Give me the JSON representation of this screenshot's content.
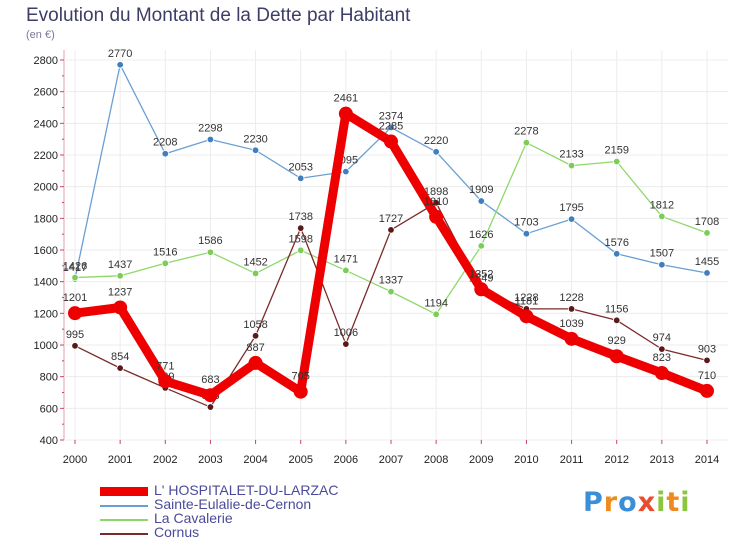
{
  "header": {
    "title": "Evolution du Montant de la Dette par Habitant",
    "subtitle": "(en €)"
  },
  "logo": {
    "letters": [
      {
        "ch": "P",
        "color": "#3a8fd6"
      },
      {
        "ch": "r",
        "color": "#f08a1c"
      },
      {
        "ch": "o",
        "color": "#3a8fd6"
      },
      {
        "ch": "x",
        "color": "#e84b2e"
      },
      {
        "ch": "i",
        "color": "#8cc63f"
      },
      {
        "ch": "t",
        "color": "#f08a1c"
      },
      {
        "ch": "i",
        "color": "#8cc63f"
      }
    ]
  },
  "chart_data": {
    "type": "line",
    "title": "Evolution du Montant de la Dette par Habitant",
    "subtitle": "(en €)",
    "x": [
      "2000",
      "2001",
      "2002",
      "2003",
      "2004",
      "2005",
      "2006",
      "2007",
      "2008",
      "2009",
      "2010",
      "2011",
      "2012",
      "2013",
      "2014"
    ],
    "ylim": [
      400,
      2800
    ],
    "yticks": [
      400,
      600,
      800,
      1000,
      1200,
      1400,
      1600,
      1800,
      2000,
      2200,
      2400,
      2600,
      2800
    ],
    "grid": true,
    "legend_position": "bottom-left",
    "series": [
      {
        "name": "Sainte-Eulalie-de-Cernon",
        "color": "#6a9fd4",
        "point_color": "#3f7fbf",
        "values": [
          1417,
          2770,
          2208,
          2298,
          2230,
          2053,
          2095,
          2374,
          2220,
          1909,
          1703,
          1795,
          1576,
          1507,
          1455
        ]
      },
      {
        "name": "La Cavalerie",
        "color": "#8ed86a",
        "point_color": "#7ccc55",
        "values": [
          1426,
          1437,
          1516,
          1586,
          1452,
          1598,
          1471,
          1337,
          1194,
          1626,
          2278,
          2133,
          2159,
          1812,
          1708
        ]
      },
      {
        "name": "Cornus",
        "color": "#7a2a2a",
        "point_color": "#5a1818",
        "values": [
          995,
          854,
          729,
          608,
          1058,
          1738,
          1006,
          1727,
          1898,
          1349,
          1228,
          1228,
          1156,
          974,
          903
        ]
      },
      {
        "name": "L' HOSPITALET-DU-LARZAC",
        "color": "#ee0000",
        "point_color": "#ee0000",
        "values": [
          1201,
          1237,
          771,
          683,
          887,
          705,
          2461,
          2285,
          1810,
          1352,
          1181,
          1039,
          929,
          823,
          710
        ]
      }
    ],
    "legend_order": [
      "L' HOSPITALET-DU-LARZAC",
      "Sainte-Eulalie-de-Cernon",
      "La Cavalerie",
      "Cornus"
    ]
  }
}
